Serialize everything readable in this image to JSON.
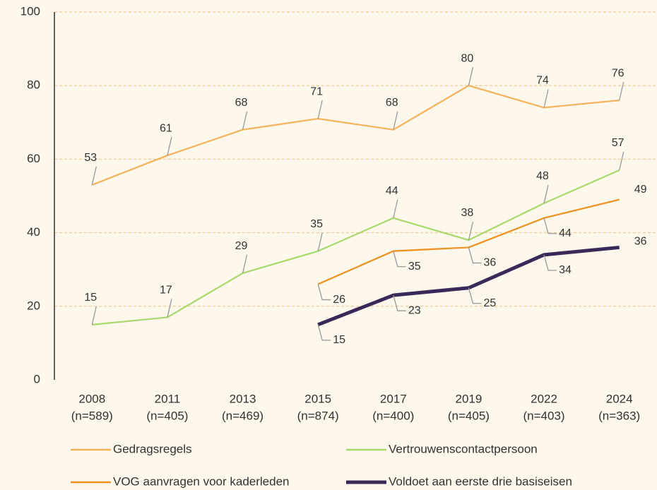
{
  "chart_data": {
    "type": "line",
    "categories": [
      "2008",
      "2011",
      "2013",
      "2015",
      "2017",
      "2019",
      "2022",
      "2024"
    ],
    "sample_sizes": [
      "(n=589)",
      "(n=405)",
      "(n=469)",
      "(n=874)",
      "(n=400)",
      "(n=405)",
      "(n=403)",
      "(n=363)"
    ],
    "series": [
      {
        "name": "Gedragsregels",
        "color": "#f7b25a",
        "values": [
          53,
          61,
          68,
          71,
          68,
          80,
          74,
          76
        ]
      },
      {
        "name": "Vertrouwenscontactpersoon",
        "color": "#a9d86c",
        "values": [
          15,
          17,
          29,
          35,
          44,
          38,
          48,
          57
        ]
      },
      {
        "name": "VOG aanvragen voor kaderleden",
        "color": "#f0901e",
        "values": [
          null,
          null,
          null,
          26,
          35,
          36,
          44,
          49
        ]
      },
      {
        "name": "Voldoet aan eerste drie basiseisen",
        "color": "#3b2858",
        "values": [
          null,
          null,
          null,
          15,
          23,
          25,
          34,
          36
        ]
      }
    ],
    "ylim": [
      0,
      100
    ],
    "yticks": [
      0,
      20,
      40,
      60,
      80,
      100
    ],
    "grid": true
  }
}
